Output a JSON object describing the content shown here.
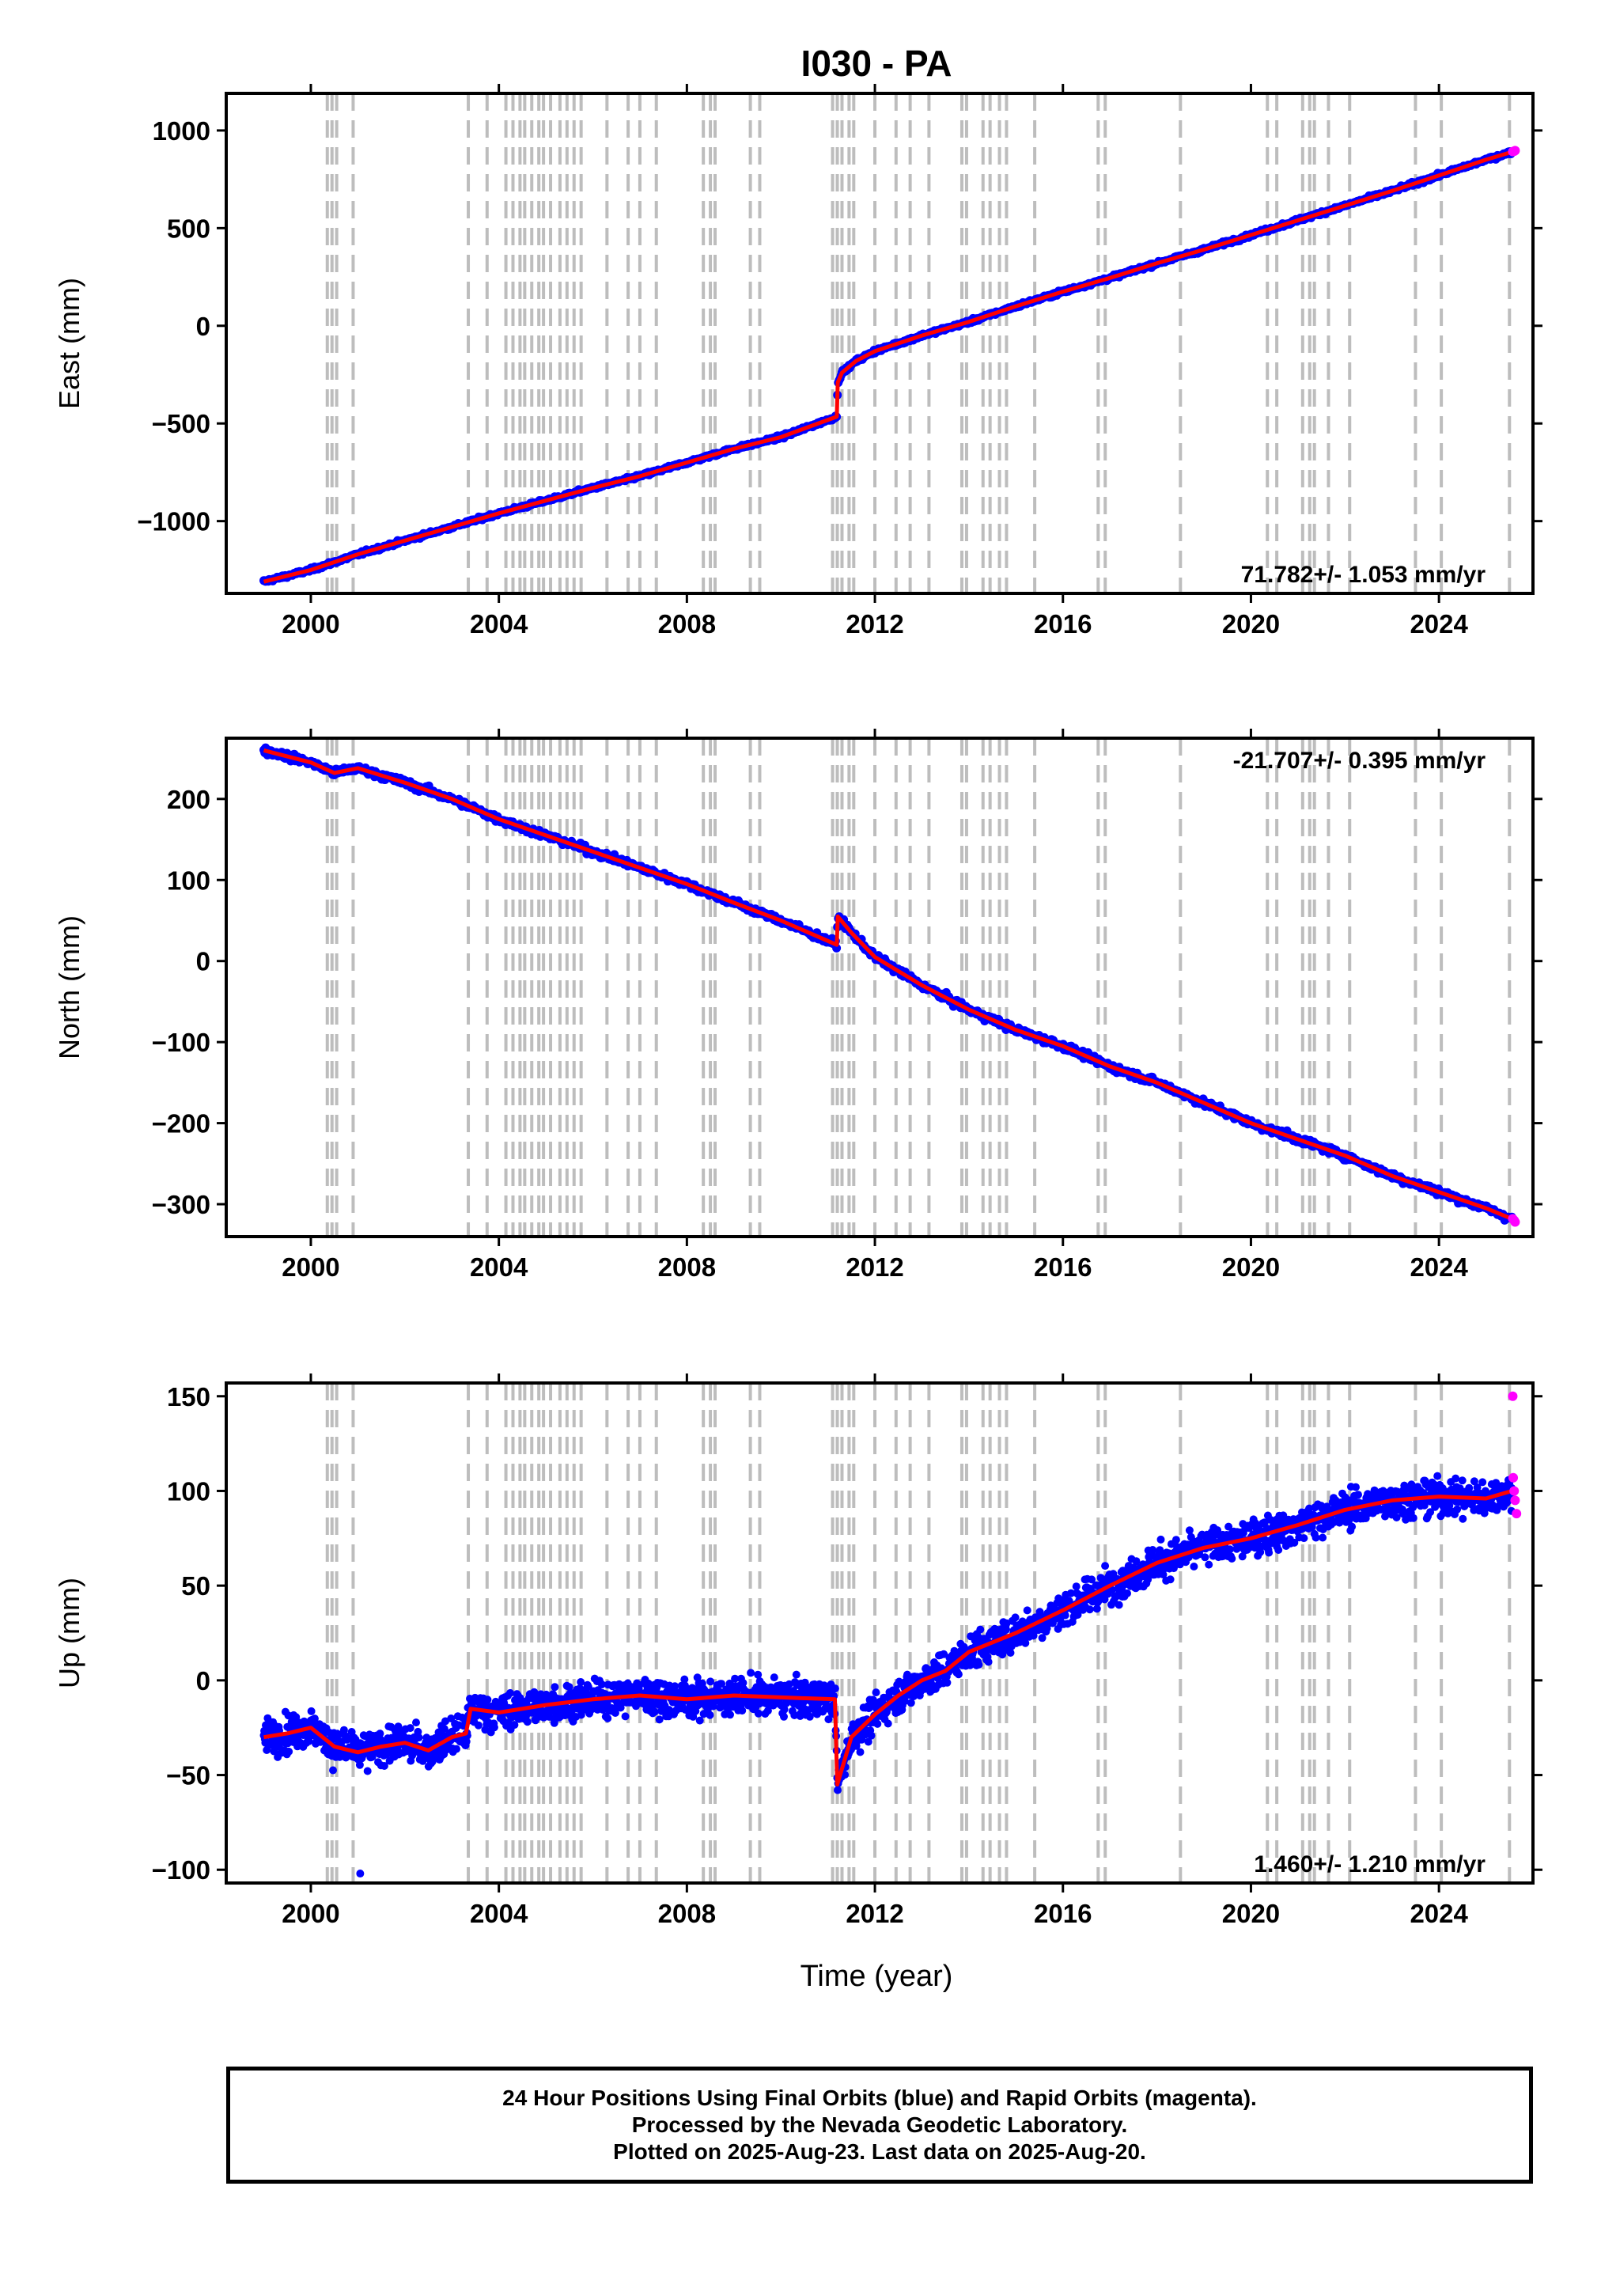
{
  "chart_data": {
    "type": "scatter",
    "title": "I030 - PA",
    "xlabel": "Time (year)",
    "xlim": [
      1998.2,
      2026.0
    ],
    "xticks": [
      "2000",
      "2004",
      "2008",
      "2012",
      "2016",
      "2020",
      "2024"
    ],
    "xtick_values": [
      2000,
      2004,
      2008,
      2012,
      2016,
      2020,
      2024
    ],
    "colors": {
      "final": "#0000ff",
      "rapid": "#ff00ff",
      "model": "#ff0000",
      "event_lines": "#bdbdbd"
    },
    "event_lines": [
      2000.35,
      2000.45,
      2000.55,
      2000.9,
      2003.35,
      2003.75,
      2004.15,
      2004.3,
      2004.45,
      2004.55,
      2004.7,
      2004.85,
      2004.95,
      2005.1,
      2005.3,
      2005.45,
      2005.6,
      2005.75,
      2006.3,
      2006.75,
      2007.0,
      2007.35,
      2008.35,
      2008.5,
      2008.6,
      2009.35,
      2009.55,
      2011.1,
      2011.2,
      2011.3,
      2011.45,
      2011.55,
      2012.0,
      2012.45,
      2012.75,
      2013.15,
      2013.85,
      2013.95,
      2014.3,
      2014.45,
      2014.65,
      2014.8,
      2015.4,
      2016.75,
      2016.9,
      2018.5,
      2020.35,
      2020.55,
      2021.1,
      2021.25,
      2021.35,
      2021.65,
      2022.1,
      2023.5,
      2024.05,
      2025.5
    ],
    "panels": [
      {
        "name": "east",
        "ylabel": "East (mm)",
        "ylim": [
          -1370,
          1190
        ],
        "yticks": [
          "1000",
          "500",
          "0",
          "−500",
          "−1000"
        ],
        "ytick_values": [
          1000,
          500,
          0,
          -500,
          -1000
        ],
        "rate_label": "71.782+/- 1.053 mm/yr",
        "rate_position": "bottom-right",
        "series": [
          {
            "name": "Final Orbits",
            "x": [
              1999.0,
              2000.0,
              2001.0,
              2002.0,
              2003.0,
              2004.0,
              2005.0,
              2006.0,
              2007.0,
              2008.0,
              2009.0,
              2010.0,
              2011.19,
              2011.21,
              2011.3,
              2011.6,
              2012.0,
              2013.0,
              2014.0,
              2015.0,
              2016.0,
              2017.0,
              2018.0,
              2019.0,
              2020.0,
              2021.0,
              2022.0,
              2023.0,
              2024.0,
              2025.0,
              2025.55
            ],
            "y": [
              -1310,
              -1250,
              -1170,
              -1100,
              -1030,
              -960,
              -895,
              -830,
              -770,
              -700,
              -630,
              -570,
              -465,
              -290,
              -240,
              -180,
              -130,
              -50,
              20,
              100,
              175,
              245,
              320,
              390,
              465,
              540,
              615,
              690,
              770,
              850,
              890
            ]
          },
          {
            "name": "Rapid Orbits",
            "x": [
              2025.57,
              2025.6,
              2025.62
            ],
            "y": [
              892,
              894,
              897
            ]
          }
        ]
      },
      {
        "name": "north",
        "ylabel": "North (mm)",
        "ylim": [
          -340,
          275
        ],
        "yticks": [
          "200",
          "100",
          "0",
          "−100",
          "−200",
          "−300"
        ],
        "ytick_values": [
          200,
          100,
          0,
          -100,
          -200,
          -300
        ],
        "rate_label": "-21.707+/- 0.395 mm/yr",
        "rate_position": "top-right",
        "series": [
          {
            "name": "Final Orbits",
            "x": [
              1999.0,
              2000.0,
              2000.5,
              2001.0,
              2002.0,
              2003.0,
              2004.0,
              2005.0,
              2006.0,
              2007.0,
              2008.0,
              2009.0,
              2010.0,
              2011.19,
              2011.21,
              2011.5,
              2012.0,
              2013.0,
              2014.0,
              2015.0,
              2016.0,
              2017.0,
              2018.0,
              2019.0,
              2020.0,
              2021.0,
              2022.0,
              2023.0,
              2024.0,
              2025.0,
              2025.55
            ],
            "y": [
              260,
              245,
              232,
              238,
              220,
              200,
              175,
              155,
              135,
              115,
              95,
              72,
              50,
              20,
              55,
              35,
              5,
              -30,
              -60,
              -85,
              -105,
              -130,
              -150,
              -175,
              -200,
              -220,
              -240,
              -265,
              -285,
              -305,
              -318
            ]
          },
          {
            "name": "Rapid Orbits",
            "x": [
              2025.57,
              2025.6,
              2025.62
            ],
            "y": [
              -318,
              -320,
              -322
            ]
          }
        ]
      },
      {
        "name": "up",
        "ylabel": "Up (mm)",
        "ylim": [
          -107,
          157
        ],
        "yticks": [
          "150",
          "100",
          "50",
          "0",
          "−50",
          "−100"
        ],
        "ytick_values": [
          150,
          100,
          50,
          0,
          -50,
          -100
        ],
        "rate_label": "1.460+/- 1.210 mm/yr",
        "rate_position": "bottom-right",
        "series": [
          {
            "name": "Final Orbits",
            "x": [
              1999.0,
              1999.5,
              2000.0,
              2000.5,
              2001.0,
              2001.5,
              2002.0,
              2002.5,
              2003.0,
              2003.3,
              2003.4,
              2004.0,
              2005.0,
              2006.0,
              2007.0,
              2008.0,
              2009.0,
              2010.0,
              2011.15,
              2011.2,
              2011.5,
              2012.0,
              2012.5,
              2013.0,
              2013.5,
              2014.0,
              2015.0,
              2016.0,
              2017.0,
              2018.0,
              2019.0,
              2020.0,
              2021.0,
              2022.0,
              2023.0,
              2024.0,
              2025.0,
              2025.55
            ],
            "y": [
              -30,
              -28,
              -25,
              -35,
              -38,
              -35,
              -33,
              -37,
              -30,
              -28,
              -15,
              -17,
              -13,
              -10,
              -8,
              -10,
              -8,
              -9,
              -10,
              -55,
              -30,
              -18,
              -8,
              0,
              5,
              15,
              25,
              37,
              50,
              62,
              70,
              75,
              82,
              90,
              95,
              97,
              96,
              100
            ]
          },
          {
            "name": "Rapid Orbits",
            "x": [
              2025.57,
              2025.58,
              2025.6,
              2025.62,
              2025.65
            ],
            "y": [
              150,
              107,
              100,
              95,
              88
            ]
          }
        ],
        "outliers": {
          "x": [
            2001.05
          ],
          "y": [
            -102
          ]
        }
      }
    ]
  },
  "caption": {
    "line1": "24 Hour Positions Using Final Orbits (blue) and Rapid Orbits (magenta).",
    "line2": "Processed by the Nevada Geodetic Laboratory.",
    "line3": "Plotted on 2025-Aug-23. Last data on 2025-Aug-20."
  }
}
